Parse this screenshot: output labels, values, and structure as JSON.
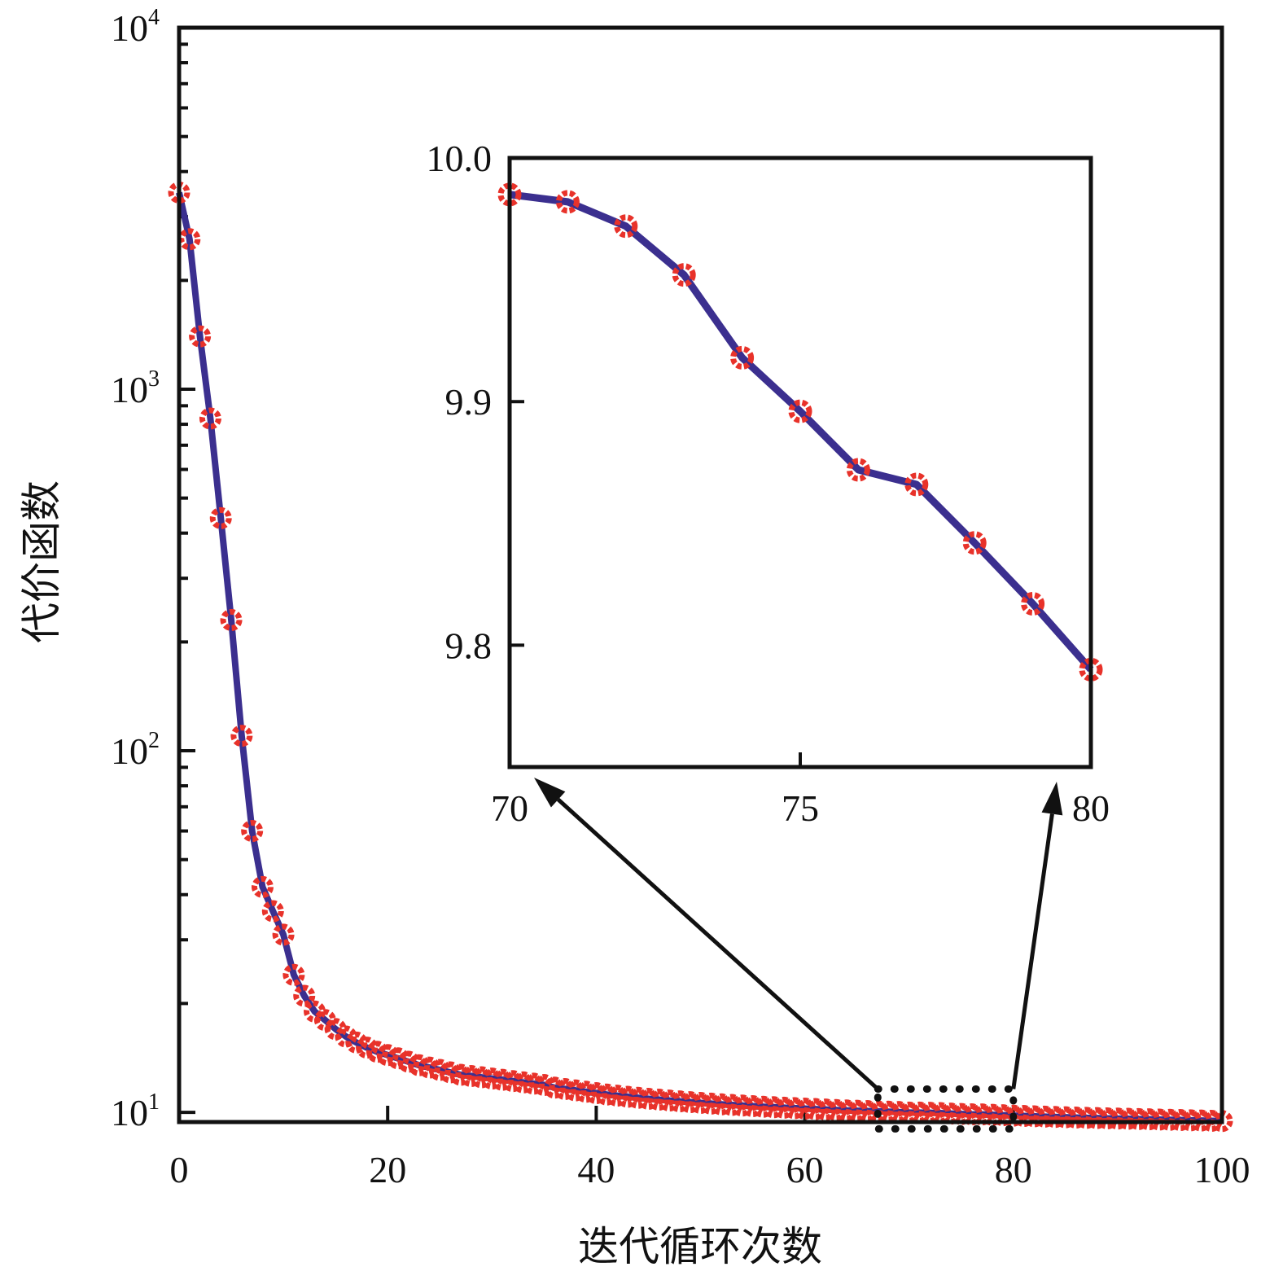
{
  "chart_data": [
    {
      "type": "line",
      "xlabel": "迭代循环次数",
      "ylabel": "代价函数",
      "yscale": "log",
      "xlim": [
        0,
        100
      ],
      "ylim": [
        9.4,
        10000
      ],
      "x_ticks": [
        0,
        20,
        40,
        60,
        80,
        100
      ],
      "y_ticks": [
        {
          "base": "10",
          "exp": "1",
          "value": 10
        },
        {
          "base": "10",
          "exp": "2",
          "value": 100
        },
        {
          "base": "10",
          "exp": "3",
          "value": 1000
        },
        {
          "base": "10",
          "exp": "4",
          "value": 10000
        }
      ],
      "highlight_region": {
        "x": [
          67,
          80
        ],
        "y": [
          9.0,
          11.6
        ]
      },
      "series": [
        {
          "line_color": "#3b2f8f",
          "marker_color": "#e8322a",
          "x": [
            0,
            1,
            2,
            3,
            4,
            5,
            6,
            7,
            8,
            9,
            10,
            11,
            12,
            13,
            14,
            15,
            16,
            17,
            18,
            19,
            20,
            21,
            22,
            23,
            24,
            25,
            26,
            27,
            28,
            29,
            30,
            31,
            32,
            33,
            34,
            35,
            36,
            37,
            38,
            39,
            40,
            41,
            42,
            43,
            44,
            45,
            46,
            47,
            48,
            49,
            50,
            51,
            52,
            53,
            54,
            55,
            56,
            57,
            58,
            59,
            60,
            61,
            62,
            63,
            64,
            65,
            66,
            67,
            68,
            69,
            70,
            71,
            72,
            73,
            74,
            75,
            76,
            77,
            78,
            79,
            80,
            81,
            82,
            83,
            84,
            85,
            86,
            87,
            88,
            89,
            90,
            91,
            92,
            93,
            94,
            95,
            96,
            97,
            98,
            99,
            100
          ],
          "y": [
            3500,
            2600,
            1400,
            830,
            440,
            230,
            110,
            60,
            42,
            36,
            31,
            24,
            21,
            19,
            18,
            17,
            16.2,
            15.6,
            15.1,
            14.7,
            14.4,
            14.1,
            13.8,
            13.5,
            13.3,
            13.1,
            12.9,
            12.7,
            12.6,
            12.5,
            12.4,
            12.3,
            12.2,
            12.1,
            12.0,
            11.9,
            11.7,
            11.6,
            11.5,
            11.4,
            11.3,
            11.2,
            11.12,
            11.04,
            10.97,
            10.9,
            10.84,
            10.78,
            10.72,
            10.67,
            10.62,
            10.57,
            10.52,
            10.48,
            10.44,
            10.4,
            10.36,
            10.33,
            10.3,
            10.27,
            10.24,
            10.21,
            10.18,
            10.15,
            10.12,
            10.1,
            10.08,
            10.06,
            10.04,
            10.02,
            9.985,
            9.982,
            9.972,
            9.952,
            9.918,
            9.896,
            9.872,
            9.866,
            9.842,
            9.817,
            9.79,
            9.77,
            9.75,
            9.73,
            9.71,
            9.69,
            9.67,
            9.655,
            9.64,
            9.625,
            9.61,
            9.595,
            9.58,
            9.565,
            9.55,
            9.535,
            9.52,
            9.505,
            9.49,
            9.475,
            9.46
          ]
        }
      ]
    },
    {
      "type": "line",
      "role": "inset",
      "xlim": [
        70,
        80
      ],
      "ylim": [
        9.75,
        10.0
      ],
      "x_ticks": [
        "70",
        "75",
        "80"
      ],
      "y_ticks": [
        "9.8",
        "9.9",
        "10.0"
      ],
      "series": [
        {
          "line_color": "#3b2f8f",
          "marker_color": "#e8322a",
          "x": [
            70,
            71,
            72,
            73,
            74,
            75,
            76,
            77,
            78,
            79,
            80
          ],
          "y": [
            9.985,
            9.982,
            9.972,
            9.952,
            9.918,
            9.896,
            9.872,
            9.866,
            9.842,
            9.817,
            9.79
          ]
        }
      ]
    }
  ]
}
